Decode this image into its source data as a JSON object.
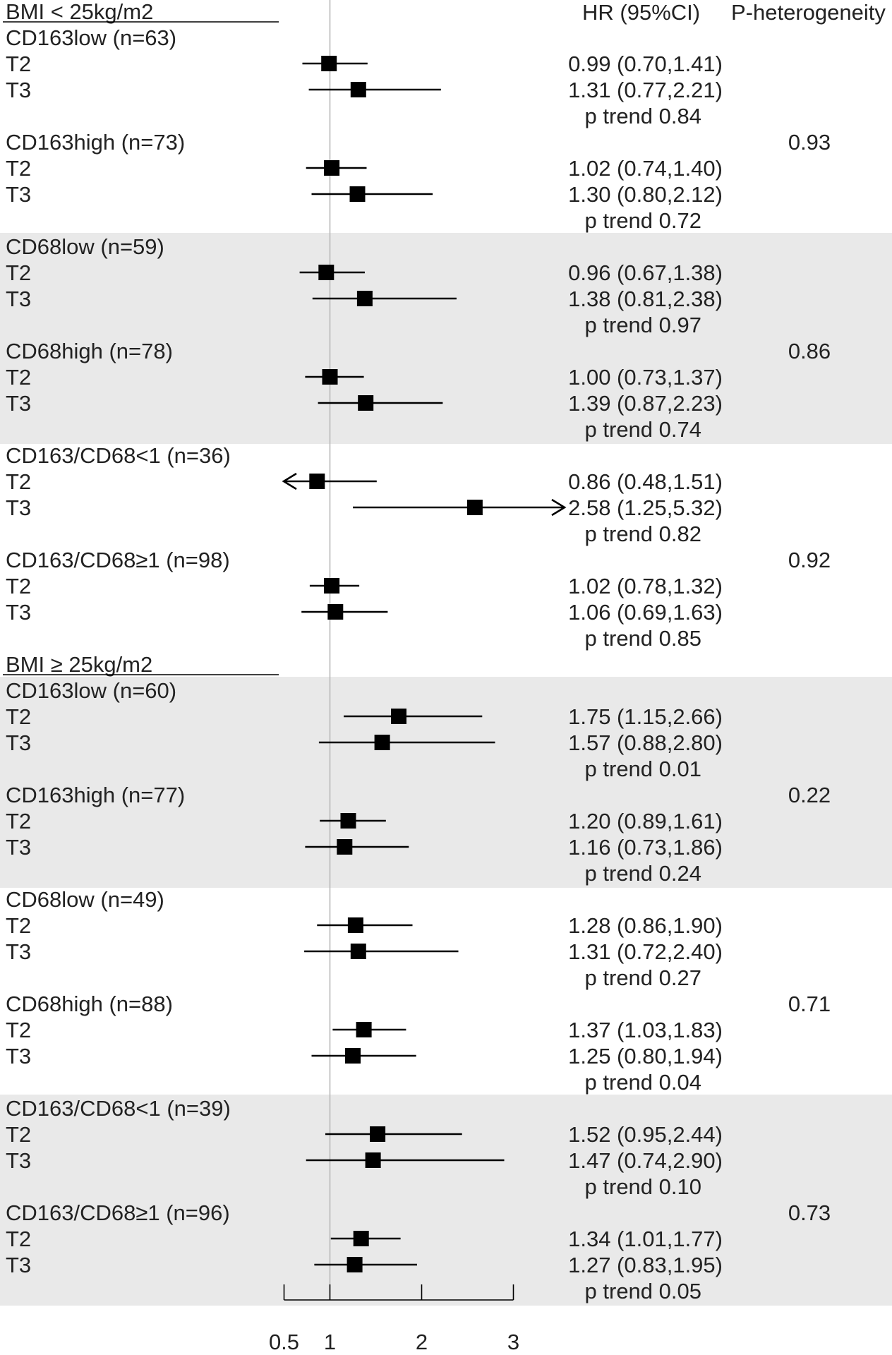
{
  "chart_data": {
    "type": "forest",
    "columns": {
      "hr": "HR (95%CI)",
      "phet": "P-heterogeneity"
    },
    "x_axis": {
      "ticks": [
        0.5,
        1,
        2,
        3
      ],
      "tick_labels": [
        "0.5",
        "1",
        "2",
        "3"
      ],
      "reference_line": 1,
      "xlim": [
        0.5,
        3
      ]
    },
    "sections": [
      {
        "title": "BMI < 25kg/m2",
        "pairs": [
          {
            "groups": [
              {
                "label": "CD163low (n=63)",
                "rows": [
                  {
                    "label": "T2",
                    "hr": 0.99,
                    "lo": 0.7,
                    "hi": 1.41,
                    "text": "0.99 (0.70,1.41)"
                  },
                  {
                    "label": "T3",
                    "hr": 1.31,
                    "lo": 0.77,
                    "hi": 2.21,
                    "text": "1.31 (0.77,2.21)"
                  }
                ],
                "trend": "p trend 0.84",
                "phet": ""
              },
              {
                "label": "CD163high (n=73)",
                "rows": [
                  {
                    "label": "T2",
                    "hr": 1.02,
                    "lo": 0.74,
                    "hi": 1.4,
                    "text": "1.02 (0.74,1.40)"
                  },
                  {
                    "label": "T3",
                    "hr": 1.3,
                    "lo": 0.8,
                    "hi": 2.12,
                    "text": "1.30 (0.80,2.12)"
                  }
                ],
                "trend": "p trend 0.72",
                "phet": "0.93"
              }
            ]
          },
          {
            "groups": [
              {
                "label": "CD68low (n=59)",
                "rows": [
                  {
                    "label": "T2",
                    "hr": 0.96,
                    "lo": 0.67,
                    "hi": 1.38,
                    "text": "0.96 (0.67,1.38)"
                  },
                  {
                    "label": "T3",
                    "hr": 1.38,
                    "lo": 0.81,
                    "hi": 2.38,
                    "text": "1.38 (0.81,2.38)"
                  }
                ],
                "trend": "p trend 0.97",
                "phet": ""
              },
              {
                "label": "CD68high (n=78)",
                "rows": [
                  {
                    "label": "T2",
                    "hr": 1.0,
                    "lo": 0.73,
                    "hi": 1.37,
                    "text": "1.00 (0.73,1.37)"
                  },
                  {
                    "label": "T3",
                    "hr": 1.39,
                    "lo": 0.87,
                    "hi": 2.23,
                    "text": "1.39 (0.87,2.23)"
                  }
                ],
                "trend": "p trend 0.74",
                "phet": "0.86"
              }
            ]
          },
          {
            "groups": [
              {
                "label": "CD163/CD68<1 (n=36)",
                "rows": [
                  {
                    "label": "T2",
                    "hr": 0.86,
                    "lo": 0.48,
                    "hi": 1.51,
                    "text": "0.86 (0.48,1.51)"
                  },
                  {
                    "label": "T3",
                    "hr": 2.58,
                    "lo": 1.25,
                    "hi": 5.32,
                    "text": "2.58 (1.25,5.32)"
                  }
                ],
                "trend": "p trend 0.82",
                "phet": ""
              },
              {
                "label": "CD163/CD68≥1 (n=98)",
                "rows": [
                  {
                    "label": "T2",
                    "hr": 1.02,
                    "lo": 0.78,
                    "hi": 1.32,
                    "text": "1.02 (0.78,1.32)"
                  },
                  {
                    "label": "T3",
                    "hr": 1.06,
                    "lo": 0.69,
                    "hi": 1.63,
                    "text": "1.06 (0.69,1.63)"
                  }
                ],
                "trend": "p trend 0.85",
                "phet": "0.92"
              }
            ]
          }
        ]
      },
      {
        "title": "BMI ≥ 25kg/m2",
        "pairs": [
          {
            "groups": [
              {
                "label": "CD163low (n=60)",
                "rows": [
                  {
                    "label": "T2",
                    "hr": 1.75,
                    "lo": 1.15,
                    "hi": 2.66,
                    "text": "1.75 (1.15,2.66)"
                  },
                  {
                    "label": "T3",
                    "hr": 1.57,
                    "lo": 0.88,
                    "hi": 2.8,
                    "text": "1.57 (0.88,2.80)"
                  }
                ],
                "trend": "p trend 0.01",
                "phet": ""
              },
              {
                "label": "CD163high (n=77)",
                "rows": [
                  {
                    "label": "T2",
                    "hr": 1.2,
                    "lo": 0.89,
                    "hi": 1.61,
                    "text": "1.20 (0.89,1.61)"
                  },
                  {
                    "label": "T3",
                    "hr": 1.16,
                    "lo": 0.73,
                    "hi": 1.86,
                    "text": "1.16 (0.73,1.86)"
                  }
                ],
                "trend": "p trend 0.24",
                "phet": "0.22"
              }
            ]
          },
          {
            "groups": [
              {
                "label": "CD68low (n=49)",
                "rows": [
                  {
                    "label": "T2",
                    "hr": 1.28,
                    "lo": 0.86,
                    "hi": 1.9,
                    "text": "1.28 (0.86,1.90)"
                  },
                  {
                    "label": "T3",
                    "hr": 1.31,
                    "lo": 0.72,
                    "hi": 2.4,
                    "text": "1.31 (0.72,2.40)"
                  }
                ],
                "trend": "p trend 0.27",
                "phet": ""
              },
              {
                "label": "CD68high (n=88)",
                "rows": [
                  {
                    "label": "T2",
                    "hr": 1.37,
                    "lo": 1.03,
                    "hi": 1.83,
                    "text": "1.37 (1.03,1.83)"
                  },
                  {
                    "label": "T3",
                    "hr": 1.25,
                    "lo": 0.8,
                    "hi": 1.94,
                    "text": "1.25 (0.80,1.94)"
                  }
                ],
                "trend": "p trend 0.04",
                "phet": "0.71"
              }
            ]
          },
          {
            "groups": [
              {
                "label": "CD163/CD68<1 (n=39)",
                "rows": [
                  {
                    "label": "T2",
                    "hr": 1.52,
                    "lo": 0.95,
                    "hi": 2.44,
                    "text": "1.52 (0.95,2.44)"
                  },
                  {
                    "label": "T3",
                    "hr": 1.47,
                    "lo": 0.74,
                    "hi": 2.9,
                    "text": "1.47 (0.74,2.90)"
                  }
                ],
                "trend": "p trend 0.10",
                "phet": ""
              },
              {
                "label": "CD163/CD68≥1 (n=96)",
                "rows": [
                  {
                    "label": "T2",
                    "hr": 1.34,
                    "lo": 1.01,
                    "hi": 1.77,
                    "text": "1.34 (1.01,1.77)"
                  },
                  {
                    "label": "T3",
                    "hr": 1.27,
                    "lo": 0.83,
                    "hi": 1.95,
                    "text": "1.27 (0.83,1.95)"
                  }
                ],
                "trend": "p trend 0.05",
                "phet": "0.73"
              }
            ]
          }
        ]
      }
    ]
  },
  "colors": {
    "band": "#e9e9e9",
    "mark": "#000000",
    "reference": "#b8b8b8",
    "text": "#222222"
  }
}
